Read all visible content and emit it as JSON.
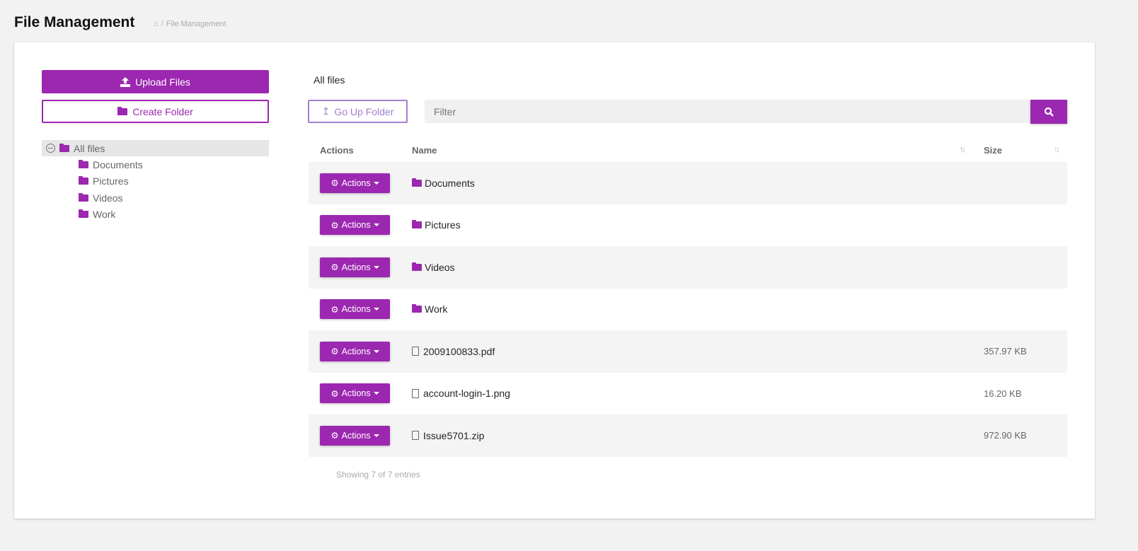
{
  "page": {
    "title": "File Management",
    "breadcrumb": [
      "File Management"
    ]
  },
  "sidebar": {
    "upload_label": "Upload Files",
    "create_folder_label": "Create Folder",
    "tree": {
      "root": "All files",
      "children": [
        "Documents",
        "Pictures",
        "Videos",
        "Work"
      ]
    }
  },
  "main": {
    "current_path": "All files",
    "go_up_label": "Go Up Folder",
    "filter_placeholder": "Filter",
    "columns": {
      "actions": "Actions",
      "name": "Name",
      "size": "Size"
    },
    "action_label": "Actions",
    "rows": [
      {
        "name": "Documents",
        "type": "folder",
        "size": ""
      },
      {
        "name": "Pictures",
        "type": "folder",
        "size": ""
      },
      {
        "name": "Videos",
        "type": "folder",
        "size": ""
      },
      {
        "name": "Work",
        "type": "folder",
        "size": ""
      },
      {
        "name": "2009100833.pdf",
        "type": "pdf",
        "size": "357.97 KB"
      },
      {
        "name": "account-login-1.png",
        "type": "image",
        "size": "16.20 KB"
      },
      {
        "name": "Issue5701.zip",
        "type": "archive",
        "size": "972.90 KB"
      }
    ],
    "footer": "Showing 7 of 7 entries"
  },
  "colors": {
    "accent": "#9c27b0",
    "secondary": "#a57fd1"
  }
}
